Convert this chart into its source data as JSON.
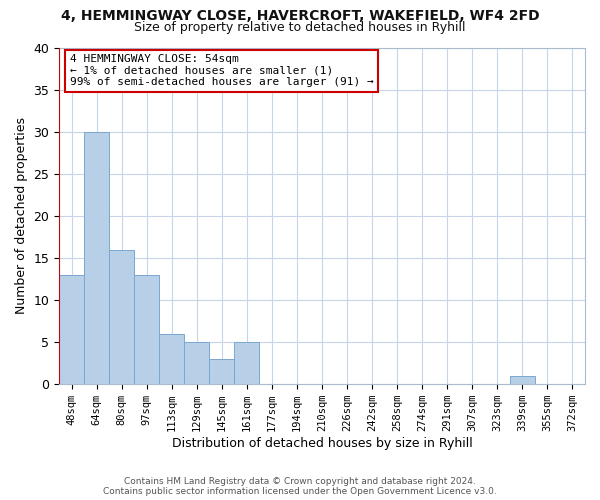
{
  "title1": "4, HEMMINGWAY CLOSE, HAVERCROFT, WAKEFIELD, WF4 2FD",
  "title2": "Size of property relative to detached houses in Ryhill",
  "xlabel": "Distribution of detached houses by size in Ryhill",
  "ylabel": "Number of detached properties",
  "bin_labels": [
    "48sqm",
    "64sqm",
    "80sqm",
    "97sqm",
    "113sqm",
    "129sqm",
    "145sqm",
    "161sqm",
    "177sqm",
    "194sqm",
    "210sqm",
    "226sqm",
    "242sqm",
    "258sqm",
    "274sqm",
    "291sqm",
    "307sqm",
    "323sqm",
    "339sqm",
    "355sqm",
    "372sqm"
  ],
  "bin_values": [
    13,
    30,
    16,
    13,
    6,
    5,
    3,
    5,
    0,
    0,
    0,
    0,
    0,
    0,
    0,
    0,
    0,
    0,
    1,
    0,
    0
  ],
  "bar_color": "#b8cfe8",
  "bar_edge_color": "#7aa8d0",
  "highlight_color_edge": "#cc0000",
  "annotation_text": "4 HEMMINGWAY CLOSE: 54sqm\n← 1% of detached houses are smaller (1)\n99% of semi-detached houses are larger (91) →",
  "annotation_box_edge": "#cc0000",
  "ylim": [
    0,
    40
  ],
  "yticks": [
    0,
    5,
    10,
    15,
    20,
    25,
    30,
    35,
    40
  ],
  "footer": "Contains HM Land Registry data © Crown copyright and database right 2024.\nContains public sector information licensed under the Open Government Licence v3.0.",
  "grid_color": "#c8d4e8",
  "bg_color": "#ffffff",
  "plot_bg_color": "#ffffff"
}
